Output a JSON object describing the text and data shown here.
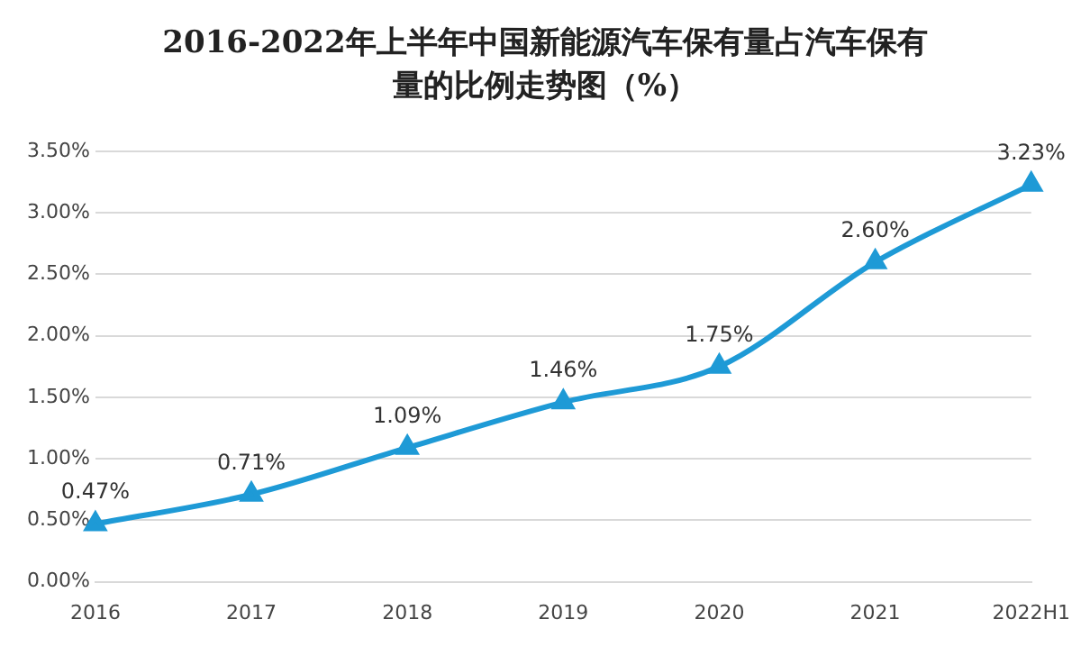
{
  "chart_data": {
    "type": "line",
    "title": "2016-2022年上半年中国新能源汽车保有量占汽车保有量的比例走势图（%）",
    "categories": [
      "2016",
      "2017",
      "2018",
      "2019",
      "2020",
      "2021",
      "2022H1"
    ],
    "series": [
      {
        "color": "#1e9ad6",
        "values": [
          0.47,
          0.71,
          1.09,
          1.46,
          1.75,
          2.6,
          3.23
        ],
        "value_labels": [
          "0.47%",
          "0.71%",
          "1.09%",
          "1.46%",
          "1.75%",
          "2.60%",
          "3.23%"
        ]
      }
    ],
    "ylim": [
      0,
      3.5
    ],
    "yticks": [
      {
        "value": 0,
        "label": "0.00%"
      },
      {
        "value": 0.5,
        "label": "0.50%"
      },
      {
        "value": 1,
        "label": "1.00%"
      },
      {
        "value": 1.5,
        "label": "1.50%"
      },
      {
        "value": 2,
        "label": "2.00%"
      },
      {
        "value": 2.5,
        "label": "2.50%"
      },
      {
        "value": 3,
        "label": "3.00%"
      },
      {
        "value": 3.5,
        "label": "3.50%"
      }
    ],
    "grid": "y",
    "legend": false,
    "marker": "triangle",
    "line_style": "solid"
  }
}
